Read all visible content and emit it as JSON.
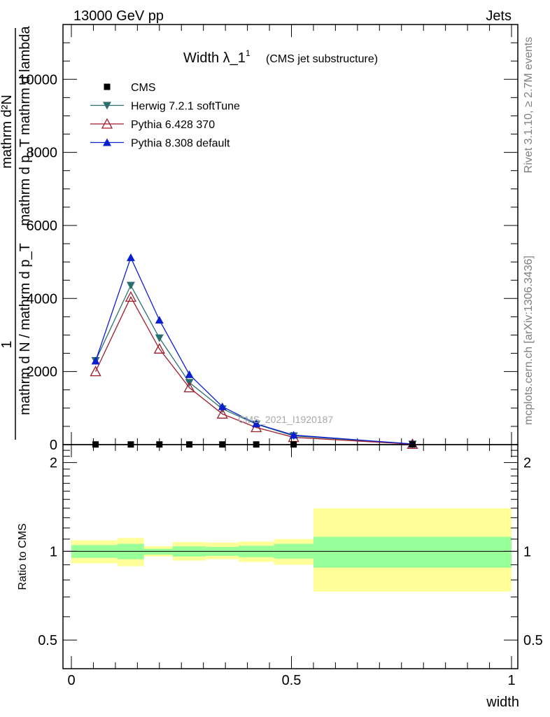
{
  "header": {
    "left": "13000 GeV pp",
    "right": "Jets"
  },
  "side": {
    "rivet": "Rivet 3.1.10, ≥ 2.7M events",
    "mcplots": "mcplots.cern.ch [arXiv:1306.3436]"
  },
  "chart_data": {
    "type": "line",
    "title": "Width λ_1",
    "title_sup": "1",
    "title_suffix": "(CMS jet substructure)",
    "watermark": "CMS_2021_I1920187",
    "ylabel_top_num": "mathrm d²N",
    "ylabel_top_den": "mathrm d p_T mathrm d lambda",
    "ylabel_bottom_num": "1",
    "ylabel_bottom_den": "mathrm d N / mathrm d p_T",
    "ratio_ylabel": "Ratio to CMS",
    "xlabel": "width",
    "xlim": [
      0,
      1
    ],
    "ylim": [
      0,
      11500
    ],
    "y_ticks": [
      0,
      2000,
      4000,
      6000,
      8000,
      10000
    ],
    "y_tick_labels": [
      "0",
      "2000",
      "4000",
      "6000",
      "8000",
      "10000"
    ],
    "x_ticks": [
      0,
      0.5,
      1
    ],
    "x_tick_labels": [
      "0",
      "0.5",
      "1"
    ],
    "ratio_ylim": [
      0.4,
      2.3
    ],
    "ratio_ticks": [
      0.5,
      1,
      2
    ],
    "ratio_tick_labels": [
      "0.5",
      "1",
      "2"
    ],
    "x": [
      0.055,
      0.135,
      0.2,
      0.268,
      0.343,
      0.42,
      0.505,
      0.775
    ],
    "series": [
      {
        "name": "CMS",
        "color": "#000000",
        "marker": "square",
        "values": [
          5,
          5,
          5,
          5,
          5,
          5,
          5,
          5
        ]
      },
      {
        "name": "Herwig 7.2.1 softTune",
        "color": "#2a6f6e",
        "marker": "triangle-down",
        "values": [
          2300,
          4360,
          2920,
          1700,
          980,
          560,
          240,
          15
        ]
      },
      {
        "name": "Pythia 6.428 370",
        "color": "#a01b2b",
        "marker": "triangle-open",
        "values": [
          2000,
          4040,
          2620,
          1560,
          840,
          470,
          200,
          12
        ]
      },
      {
        "name": "Pythia 8.308 default",
        "color": "#0a1fd0",
        "marker": "triangle-up",
        "values": [
          2290,
          5120,
          3410,
          1920,
          1040,
          570,
          260,
          18
        ]
      }
    ],
    "ratio_bands": [
      {
        "xmin": 0.0,
        "xmax": 0.105,
        "inner": [
          0.95,
          1.05
        ],
        "outer": [
          0.91,
          1.09
        ]
      },
      {
        "xmin": 0.105,
        "xmax": 0.165,
        "inner": [
          0.94,
          1.06
        ],
        "outer": [
          0.89,
          1.11
        ]
      },
      {
        "xmin": 0.165,
        "xmax": 0.23,
        "inner": [
          0.975,
          1.02
        ],
        "outer": [
          0.96,
          1.04
        ]
      },
      {
        "xmin": 0.23,
        "xmax": 0.305,
        "inner": [
          0.96,
          1.04
        ],
        "outer": [
          0.93,
          1.075
        ]
      },
      {
        "xmin": 0.305,
        "xmax": 0.38,
        "inner": [
          0.965,
          1.035
        ],
        "outer": [
          0.94,
          1.07
        ]
      },
      {
        "xmin": 0.38,
        "xmax": 0.46,
        "inner": [
          0.955,
          1.045
        ],
        "outer": [
          0.92,
          1.08
        ]
      },
      {
        "xmin": 0.46,
        "xmax": 0.55,
        "inner": [
          0.945,
          1.06
        ],
        "outer": [
          0.9,
          1.1
        ]
      },
      {
        "xmin": 0.55,
        "xmax": 1.0,
        "inner": [
          0.88,
          1.12
        ],
        "outer": [
          0.73,
          1.4
        ]
      }
    ]
  },
  "colors": {
    "band_inner": "#99ff99",
    "band_outer": "#ffff99"
  }
}
